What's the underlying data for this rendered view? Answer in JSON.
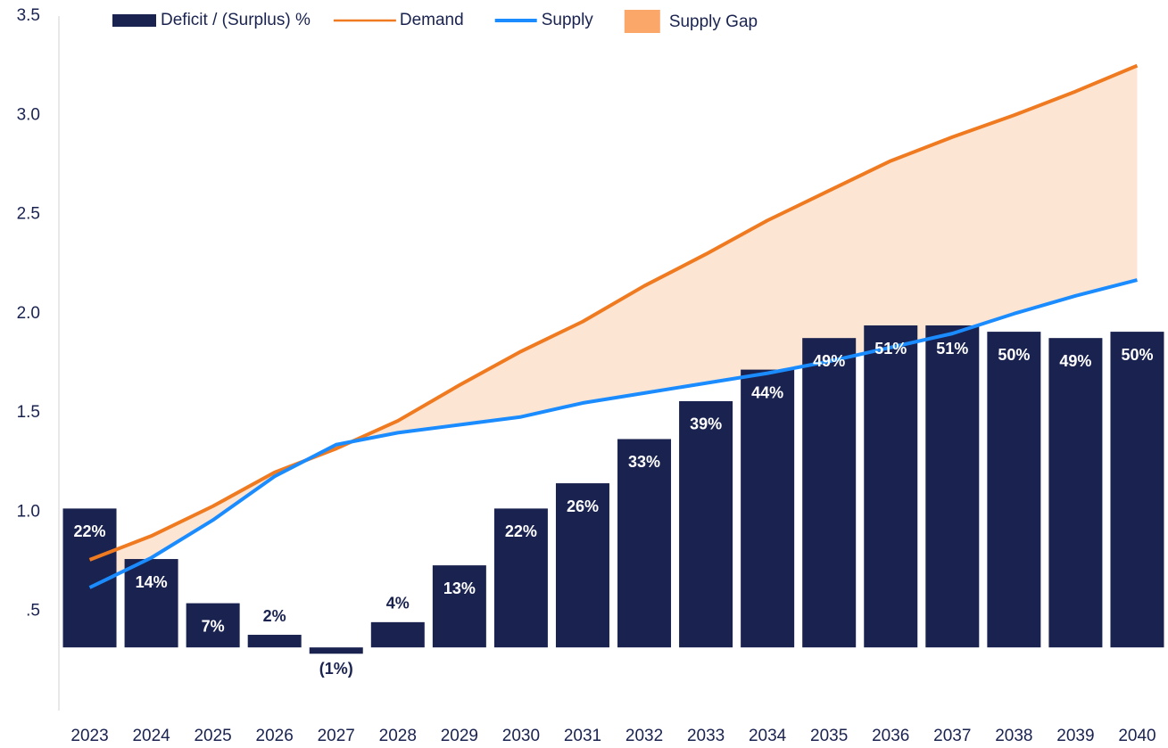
{
  "chart_data": {
    "type": "bar_line",
    "categories": [
      "2023",
      "2024",
      "2025",
      "2026",
      "2027",
      "2028",
      "2029",
      "2030",
      "2031",
      "2032",
      "2033",
      "2034",
      "2035",
      "2036",
      "2037",
      "2038",
      "2039",
      "2040"
    ],
    "series": [
      {
        "name": "Deficit / (Surplus) %",
        "type": "bar",
        "axis": "y2",
        "color": "#1a2350",
        "values": [
          22,
          14,
          7,
          2,
          -1,
          4,
          13,
          22,
          26,
          33,
          39,
          44,
          49,
          51,
          51,
          50,
          49,
          50
        ],
        "value_labels": [
          "22%",
          "14%",
          "7%",
          "2%",
          "(1%)",
          "4%",
          "13%",
          "22%",
          "26%",
          "33%",
          "39%",
          "44%",
          "49%",
          "51%",
          "51%",
          "50%",
          "49%",
          "50%"
        ]
      },
      {
        "name": "Demand",
        "type": "line",
        "color": "#f07a20",
        "values": [
          0.76,
          0.88,
          1.03,
          1.2,
          1.32,
          1.46,
          1.64,
          1.81,
          1.96,
          2.14,
          2.3,
          2.47,
          2.62,
          2.77,
          2.89,
          3.0,
          3.12,
          3.25
        ]
      },
      {
        "name": "Supply",
        "type": "line",
        "color": "#1a8cff",
        "values": [
          0.62,
          0.77,
          0.96,
          1.18,
          1.34,
          1.4,
          1.44,
          1.48,
          1.55,
          1.6,
          1.65,
          1.7,
          1.76,
          1.83,
          1.9,
          2.0,
          2.09,
          2.17
        ]
      }
    ],
    "gap": {
      "name": "Supply Gap",
      "color": "#fde5d3",
      "legend_color": "#fba76a"
    },
    "ylim": [
      0,
      3.5
    ],
    "yticks": [
      {
        "value": 0.5,
        "label": ".5"
      },
      {
        "value": 1,
        "label": "1.0"
      },
      {
        "value": 1.5,
        "label": "1.5"
      },
      {
        "value": 2,
        "label": "2.0"
      },
      {
        "value": 2.5,
        "label": "2.5"
      },
      {
        "value": 3,
        "label": "3.0"
      },
      3.5
    ],
    "y2lim": [
      -10,
      100
    ],
    "grid": false
  }
}
